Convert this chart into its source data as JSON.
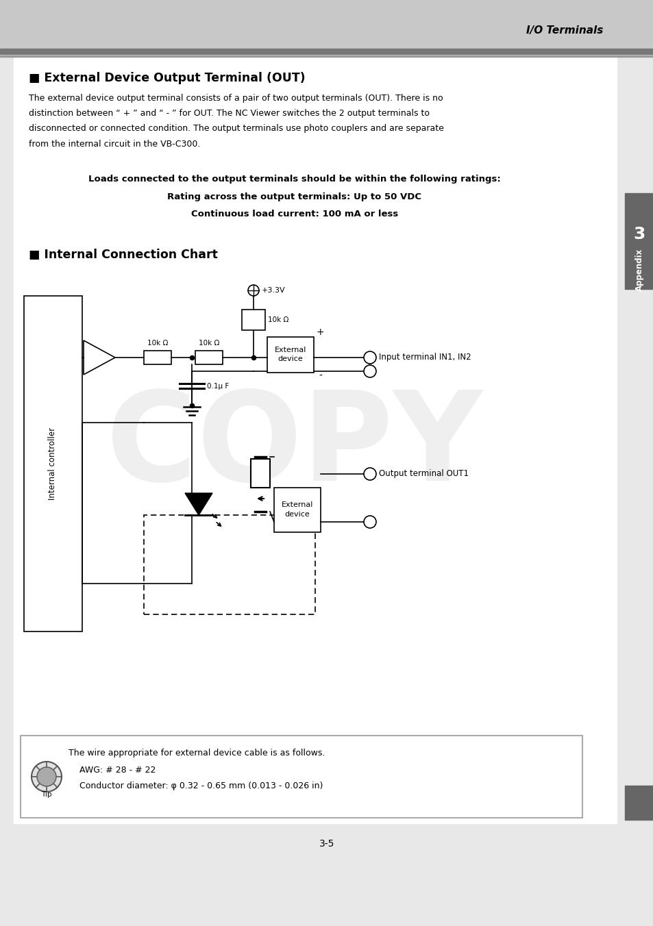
{
  "page_header": "I/O Terminals",
  "section1_title": "■ External Device Output Terminal (OUT)",
  "body_line1": "The external device output terminal consists of a pair of two output terminals (OUT). There is no",
  "body_line2": "distinction between “ + ” and “ - ” for OUT. The NC Viewer switches the 2 output terminals to",
  "body_line3": "disconnected or connected condition. The output terminals use photo couplers and are separate",
  "body_line4": "from the internal circuit in the VB-C300.",
  "warning_line1": "Loads connected to the output terminals should be within the following ratings:",
  "warning_line2": "Rating across the output terminals: Up to 50 VDC",
  "warning_line3": "Continuous load current: 100 mA or less",
  "section2_title": "■ Internal Connection Chart",
  "res1_label": "10k Ω",
  "res2_label": "10k Ω",
  "res3_label": "10k Ω",
  "cap_label": "0.1μ F",
  "vcc_label": "+3.3V",
  "plus_label": "+",
  "minus_label": "-",
  "ext_label1": "External",
  "ext_label2": "device",
  "in_terminal": "Input terminal IN1, IN2",
  "out_terminal": "Output terminal OUT1",
  "int_ctrl_label": "Internal controller",
  "tip_line1": "The wire appropriate for external device cable is as follows.",
  "tip_line2": "AWG: # 28 - # 22",
  "tip_line3": "Conductor diameter: φ 0.32 - 0.65 mm (0.013 - 0.026 in)",
  "side_label": "Appendix",
  "side_number": "3",
  "page_number": "3-5",
  "bg_color": "#e8e8e8",
  "header_bg": "#c8c8c8",
  "white": "#ffffff",
  "black": "#000000",
  "dark_gray": "#555555",
  "medium_gray": "#999999",
  "tab_color": "#666666"
}
